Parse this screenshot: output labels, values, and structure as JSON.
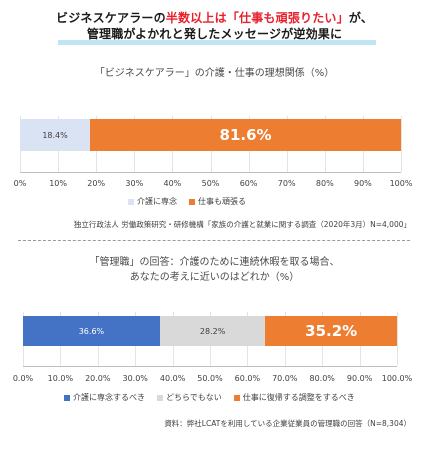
{
  "headline": {
    "line1_pre": "ビジネスケアラーの",
    "line1_red": "半数以上は「仕事も頑張りたい」",
    "line1_post": "が、",
    "line2": "管理職がよかれと発したメッセージが逆効果に"
  },
  "colors": {
    "accent_red": "#e8202c",
    "orange": "#ed7d31",
    "light_blue": "#dae3f3",
    "blue": "#4472c4",
    "gray": "#d9d9d9",
    "underline": "#bfe6f2"
  },
  "chart_data": [
    {
      "type": "bar",
      "orientation": "horizontal-stacked",
      "title": "「ビジネスケアラー」の介護・仕事の理想関係（%）",
      "series": [
        {
          "name": "介護に専念",
          "value": 18.4,
          "label": "18.4%",
          "color": "#dae3f3"
        },
        {
          "name": "仕事も頑張る",
          "value": 81.6,
          "label": "81.6%",
          "color": "#ed7d31"
        }
      ],
      "xlim": [
        0,
        100
      ],
      "ticks": [
        "0%",
        "10%",
        "20%",
        "30%",
        "40%",
        "50%",
        "60%",
        "70%",
        "80%",
        "90%",
        "100%"
      ],
      "legend_position": "bottom",
      "source": "独立行政法人 労働政策研究・研修機構「家族の介護と就業に関する調査（2020年3月）N=4,000」"
    },
    {
      "type": "bar",
      "orientation": "horizontal-stacked",
      "title_line1": "「管理職」の回答：介護のために連続休暇を取る場合、",
      "title_line2": "あなたの考えに近いのはどれか（%）",
      "series": [
        {
          "name": "介護に専念するべき",
          "value": 36.6,
          "label": "36.6%",
          "color": "#4472c4"
        },
        {
          "name": "どちらでもない",
          "value": 28.2,
          "label": "28.2%",
          "color": "#d9d9d9"
        },
        {
          "name": "仕事に復帰する調整をするべき",
          "value": 35.2,
          "label": "35.2%",
          "color": "#ed7d31"
        }
      ],
      "xlim": [
        0,
        100
      ],
      "ticks": [
        "0.0%",
        "10.0%",
        "20.0%",
        "30.0%",
        "40.0%",
        "50.0%",
        "60.0%",
        "70.0%",
        "80.0%",
        "90.0%",
        "100.0%"
      ],
      "legend_position": "bottom",
      "source": "資料：弊社LCATを利用している企業従業員の管理職の回答（N=8,304）"
    }
  ]
}
